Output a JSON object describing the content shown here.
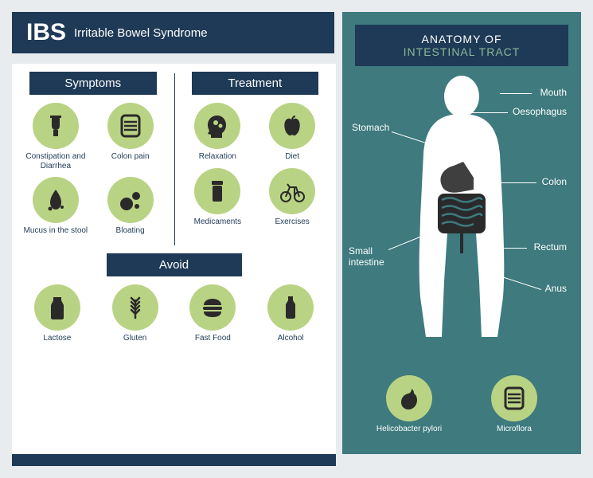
{
  "colors": {
    "dark_navy": "#1e3a56",
    "teal": "#3e7a7e",
    "icon_bg": "#b9d384",
    "page_bg": "#e8ecef",
    "icon_fg": "#2a2a2a",
    "white": "#ffffff",
    "anat_accent": "#8fb89a"
  },
  "title": {
    "abbr": "IBS",
    "full": "Irritable Bowel Syndrome"
  },
  "symptoms": {
    "header": "Symptoms",
    "items": [
      {
        "label": "Constipation and\nDiarrhea",
        "icon": "toilet"
      },
      {
        "label": "Colon pain",
        "icon": "intestine"
      },
      {
        "label": "Mucus in the stool",
        "icon": "mucus"
      },
      {
        "label": "Bloating",
        "icon": "bubbles"
      }
    ]
  },
  "treatment": {
    "header": "Treatment",
    "items": [
      {
        "label": "Relaxation",
        "icon": "head-gears"
      },
      {
        "label": "Diet",
        "icon": "apple"
      },
      {
        "label": "Medicaments",
        "icon": "pill-bottle"
      },
      {
        "label": "Exercises",
        "icon": "bicycle"
      }
    ]
  },
  "avoid": {
    "header": "Avoid",
    "items": [
      {
        "label": "Lactose",
        "icon": "milk"
      },
      {
        "label": "Gluten",
        "icon": "wheat"
      },
      {
        "label": "Fast Food",
        "icon": "burger"
      },
      {
        "label": "Alcohol",
        "icon": "bottle"
      }
    ]
  },
  "anatomy": {
    "header_l1": "ANATOMY OF",
    "header_l2": "INTESTINAL TRACT",
    "labels": {
      "mouth": "Mouth",
      "oesophagus": "Oesophagus",
      "stomach": "Stomach",
      "colon": "Colon",
      "small_intestine": "Small intestine",
      "rectum": "Rectum",
      "anus": "Anus"
    },
    "bottom": [
      {
        "label": "Helicobacter pylori",
        "icon": "stomach"
      },
      {
        "label": "Microflora",
        "icon": "intestine"
      }
    ]
  }
}
